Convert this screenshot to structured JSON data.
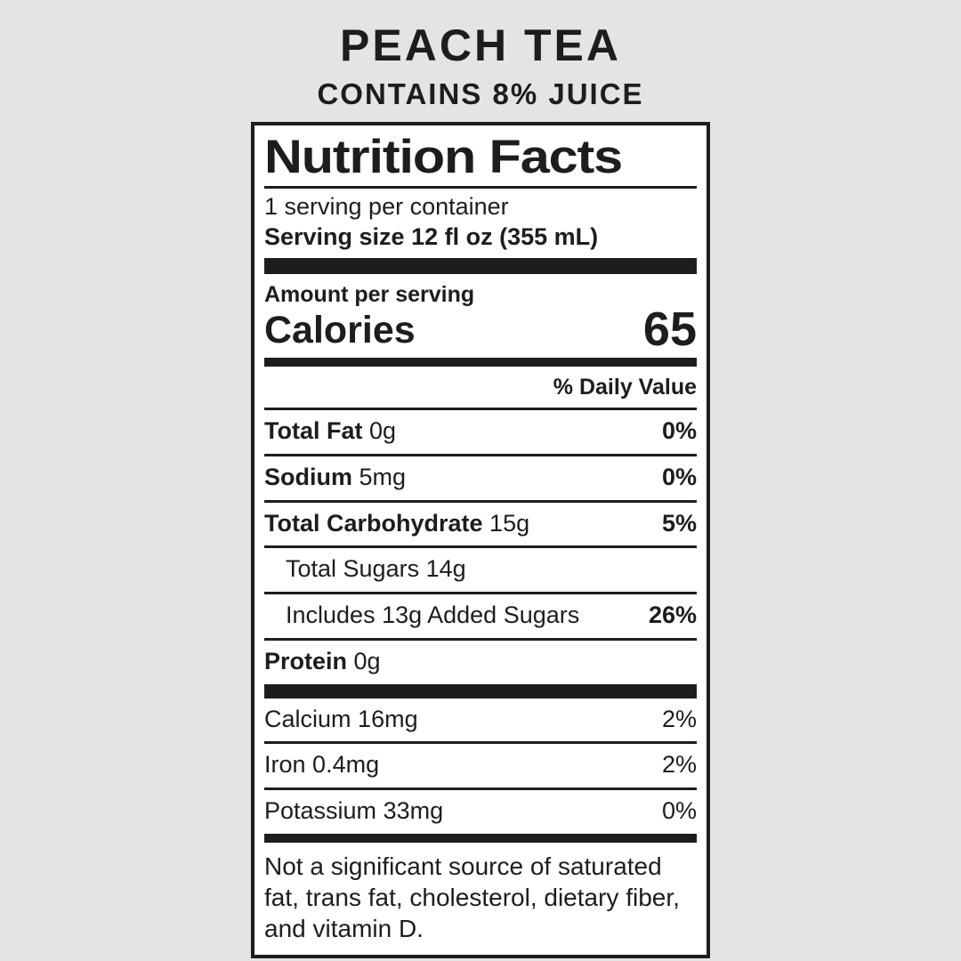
{
  "colors": {
    "background": "#e4e4e4",
    "ink": "#1e1c1c",
    "paper": "#ffffff"
  },
  "header": {
    "title": "PEACH TEA",
    "subtitle": "CONTAINS 8% JUICE"
  },
  "label": {
    "title": "Nutrition Facts",
    "servings_per_container": "1 serving per container",
    "serving_size": "Serving size 12 fl oz (355 mL)",
    "amount_per_serving": "Amount per serving",
    "calories_label": "Calories",
    "calories_value": "65",
    "daily_value_header": "% Daily Value",
    "nutrients": [
      {
        "name": "Total Fat",
        "amount": "0g",
        "dv": "0%"
      },
      {
        "name": "Sodium",
        "amount": "5mg",
        "dv": "0%"
      },
      {
        "name": "Total Carbohydrate",
        "amount": "15g",
        "dv": "5%"
      },
      {
        "name": "Total Sugars",
        "amount": "14g",
        "dv": ""
      },
      {
        "name": "Includes 13g Added Sugars",
        "amount": "",
        "dv": "26%"
      },
      {
        "name": "Protein",
        "amount": "0g",
        "dv": ""
      }
    ],
    "minerals": [
      {
        "name": "Calcium",
        "amount": "16mg",
        "dv": "2%"
      },
      {
        "name": "Iron",
        "amount": "0.4mg",
        "dv": "2%"
      },
      {
        "name": "Potassium",
        "amount": "33mg",
        "dv": "0%"
      }
    ],
    "footnote": "Not a significant source of saturated fat, trans fat, cholesterol, dietary fiber, and vitamin D."
  }
}
